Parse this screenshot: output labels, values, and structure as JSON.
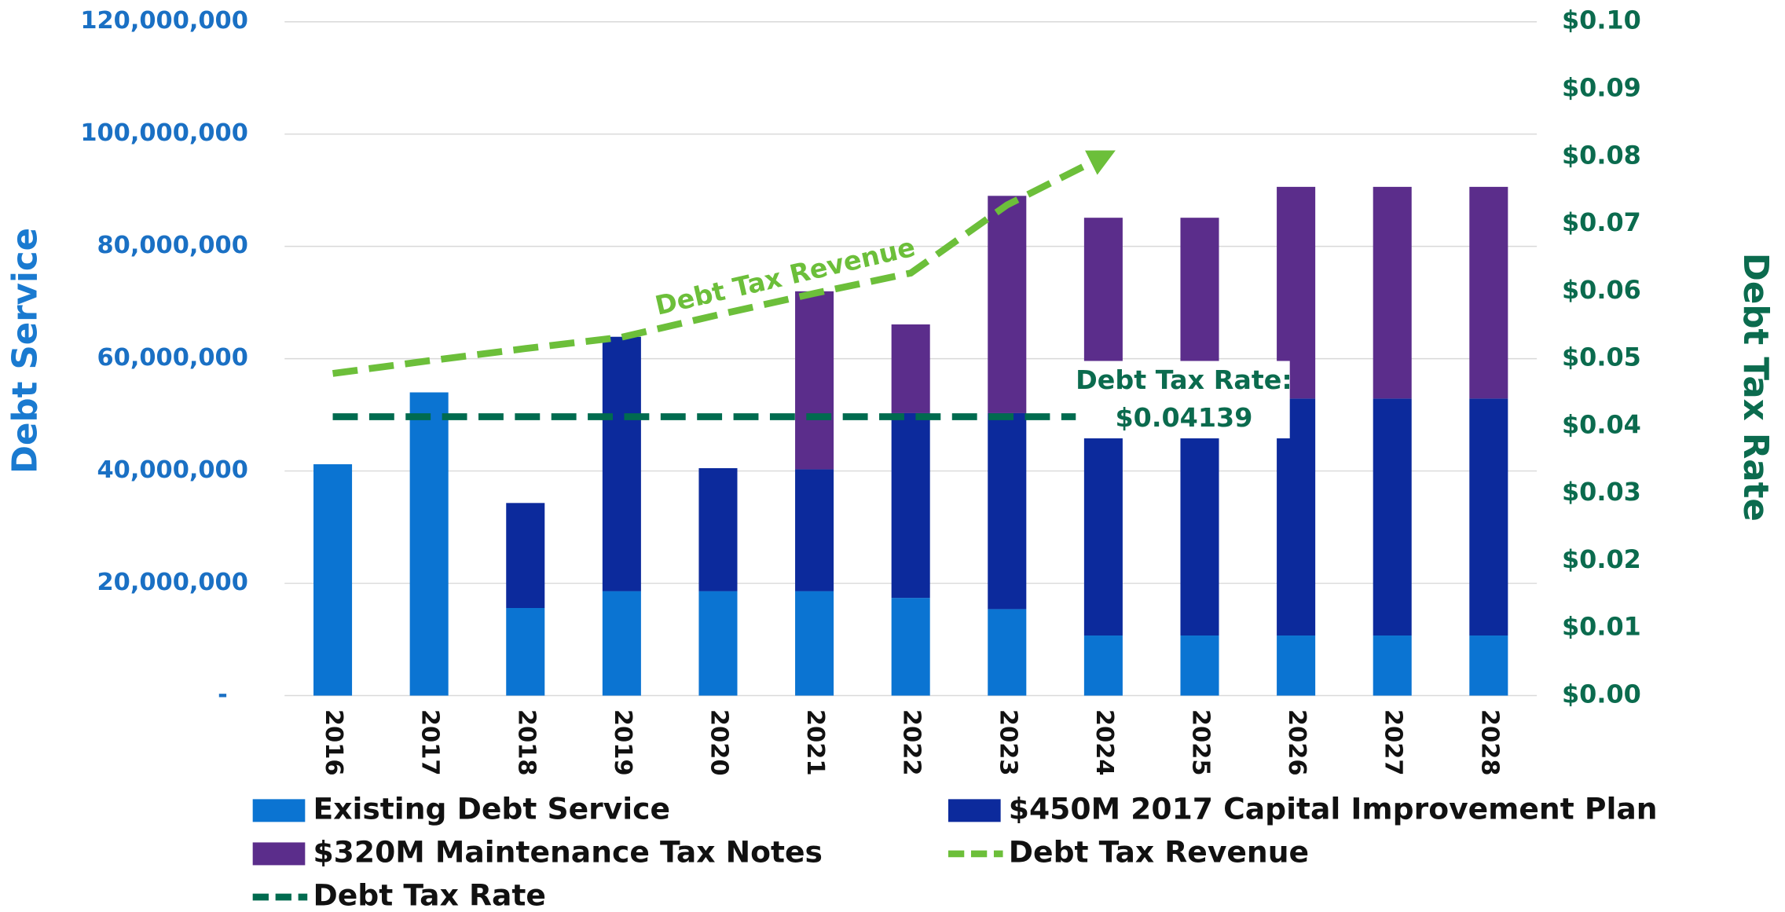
{
  "chart_data": {
    "type": "bar",
    "stacked": true,
    "y_label": "Debt Service",
    "y2_label": "Debt Tax Rate",
    "categories": [
      "2016",
      "2017",
      "2018",
      "2019",
      "2020",
      "2021",
      "2022",
      "2023",
      "2024",
      "2025",
      "2026",
      "2027",
      "2028"
    ],
    "series": [
      {
        "name": "Existing Debt Service",
        "color": "#0b74d2",
        "type": "bar",
        "values": [
          41200000,
          54000000,
          15600000,
          18600000,
          18600000,
          18600000,
          17400000,
          15400000,
          10700000,
          10700000,
          10700000,
          10700000,
          10700000
        ]
      },
      {
        "name": "$450M 2017 Capital Improvement Plan",
        "color": "#0c2a9c",
        "type": "bar",
        "values": [
          0,
          0,
          18700000,
          45300000,
          21900000,
          21700000,
          32900000,
          34900000,
          42200000,
          40800000,
          42200000,
          42200000,
          42200000
        ]
      },
      {
        "name": "$320M Maintenance Tax Notes",
        "color": "#5b2d8b",
        "type": "bar",
        "values": [
          0,
          0,
          0,
          0,
          0,
          31700000,
          15800000,
          38700000,
          32200000,
          33600000,
          37700000,
          37700000,
          37700000
        ]
      },
      {
        "name": "Debt Tax Revenue",
        "color": "#6cbf3a",
        "type": "line",
        "axis": "y2",
        "dashed": true,
        "values": [
          0.0478,
          0.0497,
          0.0515,
          0.0532,
          0.0565,
          0.0597,
          0.0627,
          0.0728,
          0.08,
          null,
          null,
          null,
          null
        ]
      },
      {
        "name": "Debt Tax Rate",
        "color": "#006b4f",
        "type": "line",
        "axis": "y2",
        "dashed": true,
        "values": [
          0.04139,
          0.04139,
          0.04139,
          0.04139,
          0.04139,
          0.04139,
          0.04139,
          0.04139,
          0.04139,
          null,
          null,
          null,
          null
        ]
      }
    ],
    "ylim": [
      0,
      120000000
    ],
    "yticks": [
      {
        "value": 0,
        "label": "-"
      },
      {
        "value": 20000000,
        "label": "20,000,000"
      },
      {
        "value": 40000000,
        "label": "40,000,000"
      },
      {
        "value": 60000000,
        "label": "60,000,000"
      },
      {
        "value": 80000000,
        "label": "80,000,000"
      },
      {
        "value": 100000000,
        "label": "100,000,000"
      },
      {
        "value": 120000000,
        "label": "120,000,000"
      }
    ],
    "y2lim": [
      0,
      0.1
    ],
    "y2ticks": [
      {
        "value": 0,
        "label": "$0.00"
      },
      {
        "value": 0.01,
        "label": "$0.01"
      },
      {
        "value": 0.02,
        "label": "$0.02"
      },
      {
        "value": 0.03,
        "label": "$0.03"
      },
      {
        "value": 0.04,
        "label": "$0.04"
      },
      {
        "value": 0.05,
        "label": "$0.05"
      },
      {
        "value": 0.06,
        "label": "$0.06"
      },
      {
        "value": 0.07,
        "label": "$0.07"
      },
      {
        "value": 0.08,
        "label": "$0.08"
      },
      {
        "value": 0.09,
        "label": "$0.09"
      },
      {
        "value": 0.1,
        "label": "$0.10"
      }
    ],
    "grid": true,
    "legend": "bottom",
    "annotations": [
      {
        "text": "Debt Tax Revenue"
      },
      {
        "text": "Debt Tax Rate:"
      },
      {
        "text": "$0.04139"
      }
    ]
  }
}
